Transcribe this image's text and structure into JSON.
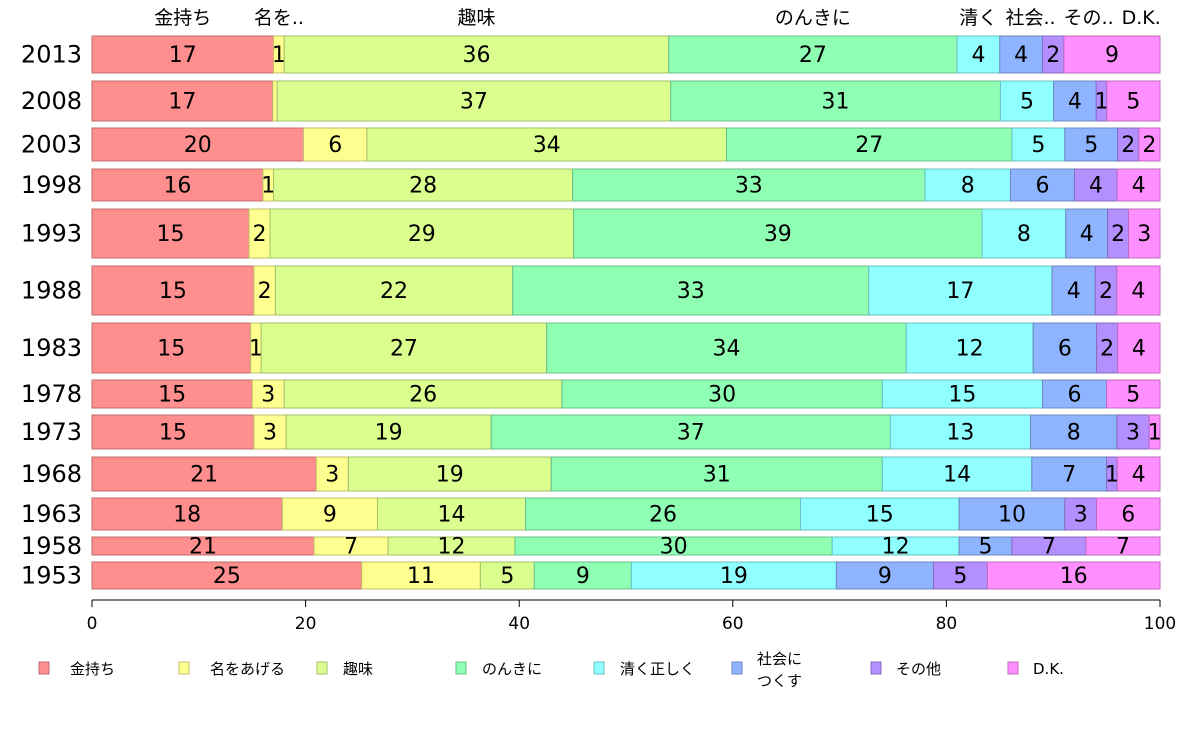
{
  "chart_data": {
    "type": "bar",
    "orientation": "horizontal",
    "stacked": true,
    "normalized_percent": true,
    "categories": [
      "2013",
      "2008",
      "2003",
      "1998",
      "1993",
      "1988",
      "1983",
      "1978",
      "1973",
      "1968",
      "1963",
      "1958",
      "1953"
    ],
    "series": [
      {
        "name": "金持ち",
        "top_label": "金持ち",
        "color": "#FF8F8F",
        "values": [
          17,
          17,
          20,
          16,
          15,
          15,
          15,
          15,
          15,
          21,
          18,
          21,
          25
        ]
      },
      {
        "name": "名をあげる",
        "top_label": "名を..",
        "color": "#FFFF8F",
        "values": [
          1,
          0.4,
          6,
          1,
          2,
          2,
          1,
          3,
          3,
          3,
          9,
          7,
          11
        ]
      },
      {
        "name": "趣味",
        "top_label": "趣味",
        "color": "#DBFF8F",
        "values": [
          36,
          37,
          34,
          28,
          29,
          22,
          27,
          26,
          19,
          19,
          14,
          12,
          5
        ]
      },
      {
        "name": "のんきに",
        "top_label": "のんきに",
        "color": "#8FFFB4",
        "values": [
          27,
          31,
          27,
          33,
          39,
          33,
          34,
          30,
          37,
          31,
          26,
          30,
          9
        ]
      },
      {
        "name": "清く正しく",
        "top_label": "清く",
        "color": "#8FFFFF",
        "values": [
          4,
          5,
          5,
          8,
          8,
          17,
          12,
          15,
          13,
          14,
          15,
          12,
          19
        ]
      },
      {
        "name": "社会につくす",
        "top_label": "社会..",
        "color": "#8FB4FF",
        "values": [
          4,
          4,
          5,
          6,
          4,
          4,
          6,
          6,
          8,
          7,
          10,
          5,
          9
        ]
      },
      {
        "name": "その他",
        "top_label": "その..",
        "color": "#B48FFF",
        "values": [
          2,
          1,
          2,
          4,
          2,
          2,
          2,
          0,
          3,
          1,
          3,
          7,
          5
        ]
      },
      {
        "name": "D.K.",
        "top_label": "D.K.",
        "color": "#FF8FFF",
        "values": [
          9,
          5,
          2,
          4,
          3,
          4,
          4,
          5,
          1,
          4,
          6,
          7,
          16
        ]
      }
    ],
    "legend_labels": [
      "金持ち",
      "名をあげる",
      "趣味",
      "のんきに",
      "清く正しく",
      "社会に",
      "つくす",
      "その他",
      "D.K."
    ],
    "xlim": [
      0,
      100
    ],
    "xticks": [
      "0",
      "20",
      "40",
      "60",
      "80",
      "100"
    ],
    "legend_position": "bottom"
  }
}
